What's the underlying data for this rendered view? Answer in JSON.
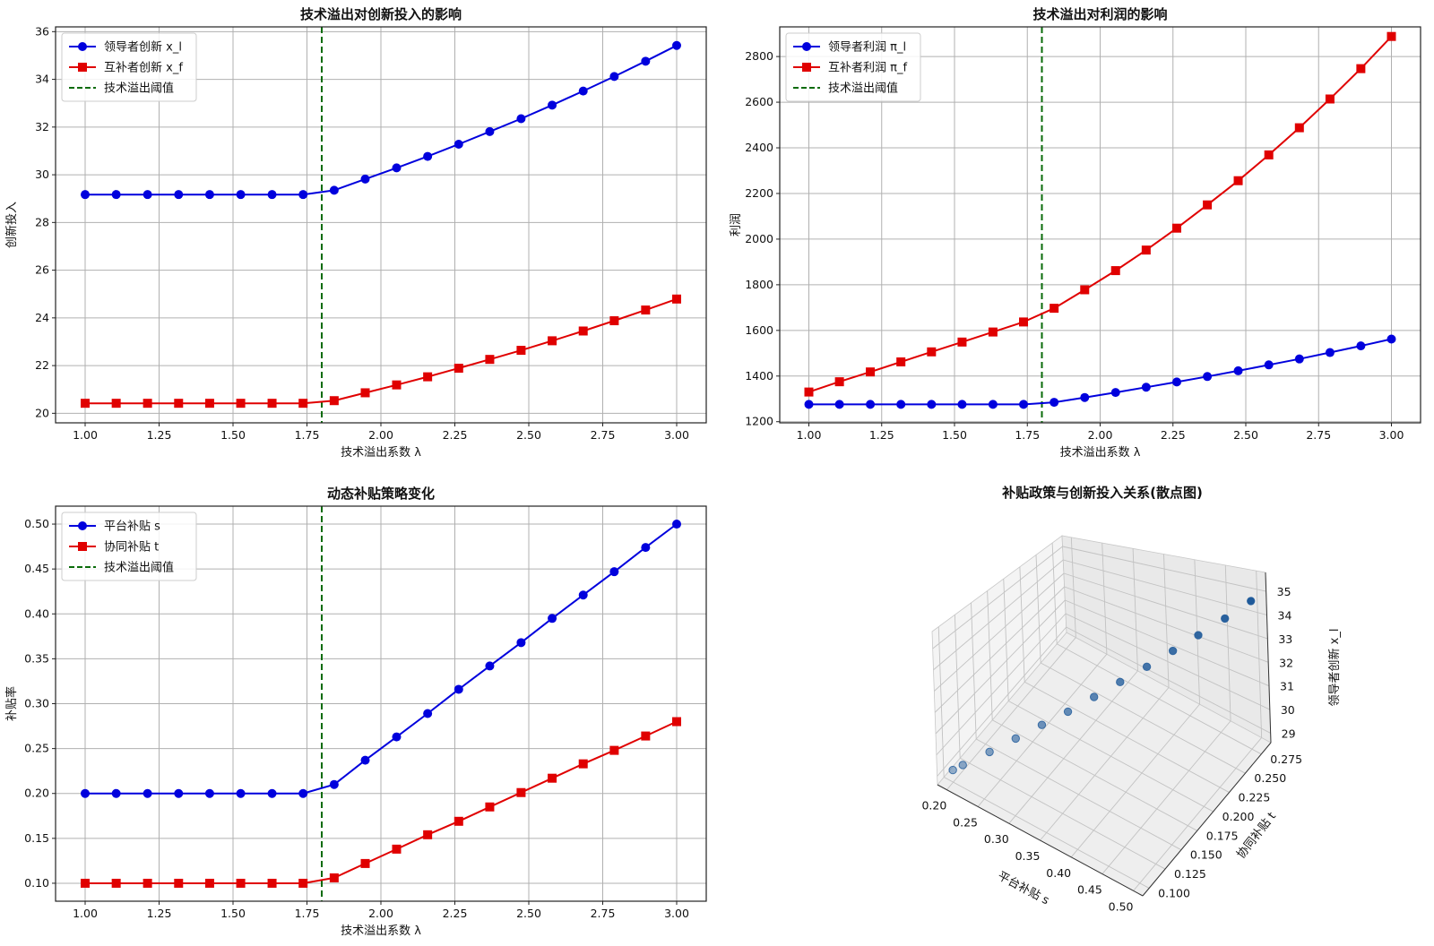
{
  "chart_data": [
    {
      "type": "line",
      "title": "技术溢出对创新投入的影响",
      "xlabel": "技术溢出系数 λ",
      "ylabel": "创新投入",
      "xlim": [
        0.9,
        3.1
      ],
      "ylim": [
        19.6,
        36.2
      ],
      "xticks": [
        "1.00",
        "1.25",
        "1.50",
        "1.75",
        "2.00",
        "2.25",
        "2.50",
        "2.75",
        "3.00"
      ],
      "yticks": [
        "20",
        "22",
        "24",
        "26",
        "28",
        "30",
        "32",
        "34",
        "36"
      ],
      "grid": true,
      "legend_position": "top-left",
      "threshold": 1.8,
      "threshold_label": "技术溢出阈值",
      "x": [
        1.0,
        1.105,
        1.211,
        1.316,
        1.421,
        1.526,
        1.632,
        1.737,
        1.842,
        1.947,
        2.053,
        2.158,
        2.263,
        2.368,
        2.474,
        2.579,
        2.684,
        2.789,
        2.895,
        3.0
      ],
      "series": [
        {
          "name": "领导者创新 x_l",
          "color": "#0000dd",
          "marker": "circle",
          "values": [
            29.17,
            29.17,
            29.17,
            29.17,
            29.17,
            29.17,
            29.17,
            29.17,
            29.35,
            29.82,
            30.29,
            30.77,
            31.28,
            31.81,
            32.35,
            32.92,
            33.51,
            34.12,
            34.76,
            35.42
          ]
        },
        {
          "name": "互补者创新 x_f",
          "color": "#e00000",
          "marker": "square",
          "values": [
            20.42,
            20.42,
            20.42,
            20.42,
            20.42,
            20.42,
            20.42,
            20.42,
            20.53,
            20.86,
            21.19,
            21.53,
            21.89,
            22.26,
            22.64,
            23.04,
            23.45,
            23.88,
            24.33,
            24.79
          ]
        }
      ]
    },
    {
      "type": "line",
      "title": "技术溢出对利润的影响",
      "xlabel": "技术溢出系数 λ",
      "ylabel": "利润",
      "xlim": [
        0.9,
        3.1
      ],
      "ylim": [
        1195,
        2930
      ],
      "xticks": [
        "1.00",
        "1.25",
        "1.50",
        "1.75",
        "2.00",
        "2.25",
        "2.50",
        "2.75",
        "3.00"
      ],
      "yticks": [
        "1200",
        "1400",
        "1600",
        "1800",
        "2000",
        "2200",
        "2400",
        "2600",
        "2800"
      ],
      "grid": true,
      "legend_position": "top-left",
      "threshold": 1.8,
      "threshold_label": "技术溢出阈值",
      "x": [
        1.0,
        1.105,
        1.211,
        1.316,
        1.421,
        1.526,
        1.632,
        1.737,
        1.842,
        1.947,
        2.053,
        2.158,
        2.263,
        2.368,
        2.474,
        2.579,
        2.684,
        2.789,
        2.895,
        3.0
      ],
      "series": [
        {
          "name": "领导者利润 π_l",
          "color": "#0000dd",
          "marker": "circle",
          "values": [
            1276,
            1276,
            1276,
            1276,
            1276,
            1276,
            1276,
            1276,
            1285,
            1306,
            1328,
            1351,
            1374,
            1398,
            1423,
            1449,
            1475,
            1503,
            1532,
            1562
          ]
        },
        {
          "name": "互补者利润 π_f",
          "color": "#e00000",
          "marker": "square",
          "values": [
            1330,
            1375,
            1418,
            1462,
            1506,
            1549,
            1593,
            1637,
            1697,
            1778,
            1862,
            1952,
            2048,
            2150,
            2256,
            2369,
            2488,
            2614,
            2747,
            2888
          ]
        }
      ]
    },
    {
      "type": "line",
      "title": "动态补贴策略变化",
      "xlabel": "技术溢出系数 λ",
      "ylabel": "补贴率",
      "xlim": [
        0.9,
        3.1
      ],
      "ylim": [
        0.08,
        0.52
      ],
      "xticks": [
        "1.00",
        "1.25",
        "1.50",
        "1.75",
        "2.00",
        "2.25",
        "2.50",
        "2.75",
        "3.00"
      ],
      "yticks": [
        "0.10",
        "0.15",
        "0.20",
        "0.25",
        "0.30",
        "0.35",
        "0.40",
        "0.45",
        "0.50"
      ],
      "grid": true,
      "legend_position": "top-left",
      "threshold": 1.8,
      "threshold_label": "技术溢出阈值",
      "x": [
        1.0,
        1.105,
        1.211,
        1.316,
        1.421,
        1.526,
        1.632,
        1.737,
        1.842,
        1.947,
        2.053,
        2.158,
        2.263,
        2.368,
        2.474,
        2.579,
        2.684,
        2.789,
        2.895,
        3.0
      ],
      "series": [
        {
          "name": "平台补贴 s",
          "color": "#0000dd",
          "marker": "circle",
          "values": [
            0.2,
            0.2,
            0.2,
            0.2,
            0.2,
            0.2,
            0.2,
            0.2,
            0.21,
            0.237,
            0.263,
            0.289,
            0.316,
            0.342,
            0.368,
            0.395,
            0.421,
            0.447,
            0.474,
            0.5
          ]
        },
        {
          "name": "协同补贴 t",
          "color": "#e00000",
          "marker": "square",
          "values": [
            0.1,
            0.1,
            0.1,
            0.1,
            0.1,
            0.1,
            0.1,
            0.1,
            0.106,
            0.122,
            0.138,
            0.154,
            0.169,
            0.185,
            0.201,
            0.217,
            0.233,
            0.248,
            0.264,
            0.28
          ]
        }
      ]
    },
    {
      "type": "scatter",
      "title": "补贴政策与创新投入关系(散点图)",
      "xlabel": "平台补贴 s",
      "ylabel": "协同补贴 t",
      "zlabel": "领导者创新 x_l",
      "xticks": [
        "0.20",
        "0.25",
        "0.30",
        "0.35",
        "0.40",
        "0.45",
        "0.50"
      ],
      "yticks": [
        "0.100",
        "0.125",
        "0.150",
        "0.175",
        "0.200",
        "0.225",
        "0.250",
        "0.275"
      ],
      "zticks": [
        "29",
        "30",
        "31",
        "32",
        "33",
        "34",
        "35"
      ],
      "point_color": "#1f5a9a",
      "points": [
        {
          "s": 0.2,
          "t": 0.1,
          "x": 29.17
        },
        {
          "s": 0.21,
          "t": 0.106,
          "x": 29.35
        },
        {
          "s": 0.237,
          "t": 0.122,
          "x": 29.82
        },
        {
          "s": 0.263,
          "t": 0.138,
          "x": 30.29
        },
        {
          "s": 0.289,
          "t": 0.154,
          "x": 30.77
        },
        {
          "s": 0.316,
          "t": 0.169,
          "x": 31.28
        },
        {
          "s": 0.342,
          "t": 0.185,
          "x": 31.81
        },
        {
          "s": 0.368,
          "t": 0.201,
          "x": 32.35
        },
        {
          "s": 0.395,
          "t": 0.217,
          "x": 32.92
        },
        {
          "s": 0.421,
          "t": 0.233,
          "x": 33.51
        },
        {
          "s": 0.447,
          "t": 0.248,
          "x": 34.12
        },
        {
          "s": 0.474,
          "t": 0.264,
          "x": 34.76
        },
        {
          "s": 0.5,
          "t": 0.28,
          "x": 35.42
        }
      ]
    }
  ]
}
